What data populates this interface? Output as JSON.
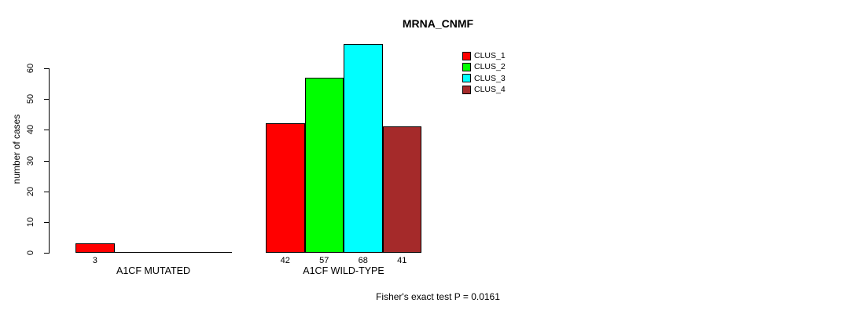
{
  "chart_data": {
    "type": "bar",
    "title": "MRNA_CNMF",
    "ylabel": "number of cases",
    "xlabel": "",
    "ylim": [
      0,
      60
    ],
    "yticks": [
      0,
      10,
      20,
      30,
      40,
      50,
      60
    ],
    "categories": [
      "A1CF MUTATED",
      "A1CF WILD-TYPE"
    ],
    "series": [
      {
        "name": "CLUS_1",
        "color": "#FF0000",
        "values": [
          3,
          42
        ]
      },
      {
        "name": "CLUS_2",
        "color": "#00FF00",
        "values": [
          0,
          57
        ]
      },
      {
        "name": "CLUS_3",
        "color": "#00FFFF",
        "values": [
          0,
          68
        ]
      },
      {
        "name": "CLUS_4",
        "color": "#A52A2A",
        "values": [
          0,
          41
        ]
      }
    ],
    "bar_value_labels": [
      [
        "3",
        null,
        null,
        null
      ],
      [
        "42",
        "57",
        "68",
        "41"
      ]
    ],
    "annotation": "Fisher's exact test P = 0.0161",
    "legend_position": "top-right",
    "grid": false,
    "background": "#FFFFFF",
    "text_color": "#000000"
  }
}
